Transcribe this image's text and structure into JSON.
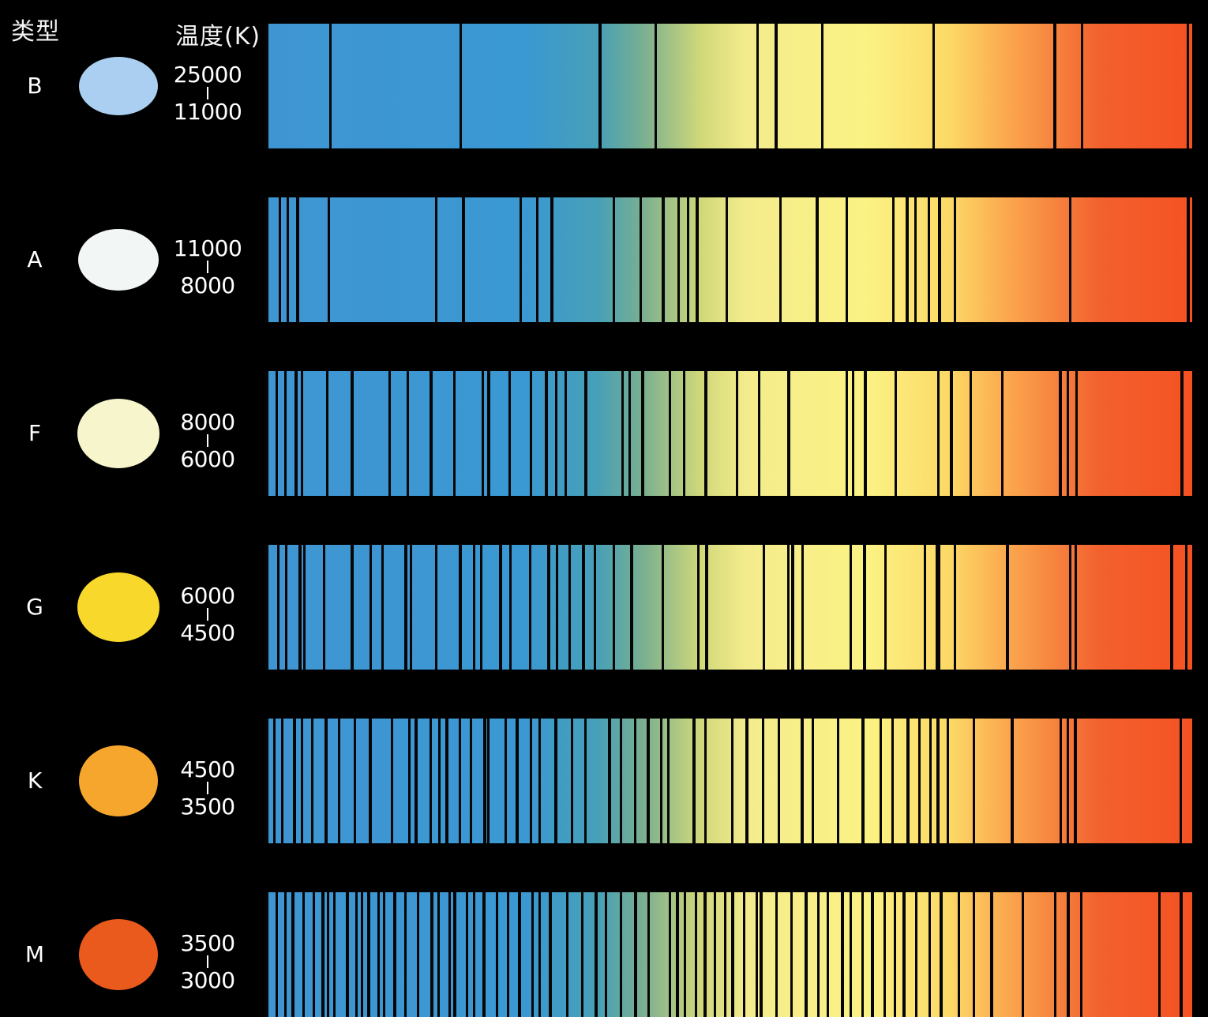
{
  "header": {
    "type_label": "类型",
    "temp_label": "温度(K)"
  },
  "classes": [
    {
      "label": "B",
      "temp_high": "25000",
      "temp_low": "11000",
      "star_color": "#aacff0",
      "lines_pct": [
        0,
        7,
        21,
        36,
        42,
        53,
        55,
        60,
        72,
        85,
        88,
        99.4
      ]
    },
    {
      "label": "A",
      "temp_high": "11000",
      "temp_low": "8000",
      "star_color": "#f2f6f4",
      "lines_pct": [
        0,
        1.5,
        2.4,
        3.4,
        6.8,
        18.4,
        21.3,
        27.5,
        29.3,
        30.8,
        37.5,
        40.4,
        42.8,
        44.5,
        45.5,
        46.5,
        49.7,
        55.5,
        59.4,
        62.6,
        67.7,
        69.1,
        70,
        71.5,
        72.6,
        74.3,
        86.7,
        99.4
      ]
    },
    {
      "label": "F",
      "temp_high": "8000",
      "temp_low": "6000",
      "star_color": "#f6f5cc",
      "lines_pct": [
        0,
        1.2,
        2.1,
        3.2,
        3.9,
        6.6,
        9.3,
        13.4,
        15.3,
        17.8,
        20.3,
        23.4,
        24,
        26.3,
        28.6,
        30.2,
        31.3,
        32.3,
        34.5,
        38.5,
        39.2,
        40.6,
        43.6,
        45.1,
        47.4,
        50.8,
        53.2,
        56.3,
        62.6,
        63.3,
        64.6,
        67.9,
        72.5,
        73.9,
        76,
        79.4,
        85.6,
        86.5,
        87.4,
        98.7
      ]
    },
    {
      "label": "G",
      "temp_high": "6000",
      "temp_low": "4500",
      "star_color": "#f8d82a",
      "lines_pct": [
        0,
        1.4,
        2.2,
        3.7,
        4.2,
        6.3,
        9.3,
        11.3,
        12.6,
        15.1,
        15.7,
        18.4,
        20.9,
        22.5,
        23.2,
        25.3,
        26.4,
        28.5,
        30.5,
        31.4,
        32.8,
        34.2,
        35.5,
        37.5,
        39.4,
        42.8,
        46.6,
        47.5,
        53.7,
        56.3,
        56.8,
        57.9,
        63.1,
        64.5,
        66.8,
        71.1,
        72.3,
        72.6,
        74.3,
        79.9,
        86.7,
        87.3,
        97.6,
        99.2
      ]
    },
    {
      "label": "K",
      "temp_high": "4500",
      "temp_low": "3500",
      "star_color": "#f6a62c",
      "lines_pct": [
        0,
        0.9,
        1.8,
        3.1,
        3.9,
        5,
        6.5,
        7.9,
        9.6,
        11.2,
        13.6,
        15.5,
        16.2,
        17.8,
        18.7,
        19.5,
        20.9,
        22.1,
        23.6,
        24,
        25.9,
        27.1,
        28.6,
        29.5,
        31.2,
        33,
        34.5,
        37,
        38.3,
        39.8,
        41.2,
        42.6,
        43.4,
        46.1,
        47.4,
        50.3,
        51.8,
        53.6,
        55.3,
        57.8,
        59,
        61.7,
        64.3,
        66.3,
        67.6,
        69.2,
        70.5,
        71.7,
        72.4,
        73.5,
        76.3,
        80.4,
        85.7,
        86.5,
        87.2,
        98.6
      ]
    },
    {
      "label": "M",
      "temp_high": "3500",
      "temp_low": "3000",
      "star_color": "#e95a1c",
      "lines_pct": [
        0,
        1.2,
        2.1,
        2.9,
        4.1,
        5.2,
        6.1,
        6.7,
        7.4,
        8.8,
        9.8,
        10.4,
        11.1,
        12.2,
        12.8,
        13.9,
        15.1,
        16.4,
        17.9,
        18.6,
        19.8,
        20.3,
        21.7,
        22.5,
        23.5,
        24.9,
        26.1,
        27.3,
        28.8,
        29.5,
        30.6,
        32.5,
        34.1,
        35.6,
        36.7,
        38.3,
        39.8,
        41.3,
        43.6,
        44.3,
        45.2,
        46.4,
        47.3,
        48.4,
        49.5,
        50.3,
        51.6,
        52.9,
        53.4,
        55.1,
        56.7,
        58.2,
        59.6,
        60.6,
        62.1,
        63.1,
        64.3,
        65.4,
        66.7,
        67.8,
        68.8,
        70.1,
        71.6,
        72.8,
        74.7,
        76.3,
        78.2,
        81.6,
        85.1,
        86.5,
        87.9,
        96.3,
        98.6
      ]
    }
  ]
}
